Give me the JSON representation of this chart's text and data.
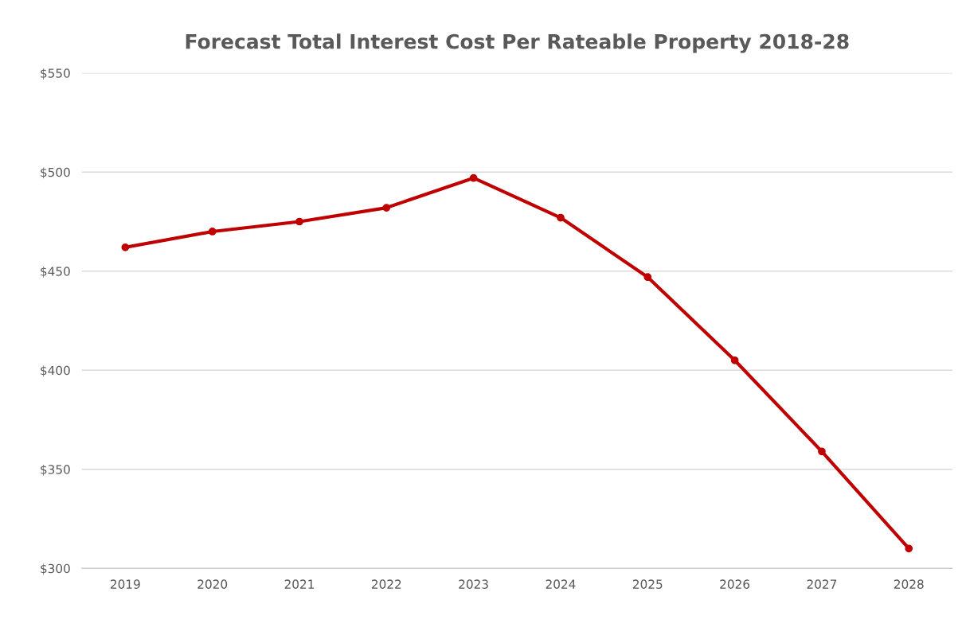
{
  "chart_data": {
    "type": "line",
    "title": "Forecast Total Interest Cost Per Rateable Property 2018-28",
    "categories": [
      "2019",
      "2020",
      "2021",
      "2022",
      "2023",
      "2024",
      "2025",
      "2026",
      "2027",
      "2028"
    ],
    "series": [
      {
        "color": "#c00000",
        "values": [
          462,
          470,
          475,
          482,
          497,
          477,
          447,
          405,
          359,
          310
        ]
      }
    ],
    "ylim": [
      300,
      550
    ],
    "yticks": [
      {
        "value": 300,
        "label": "$300"
      },
      {
        "value": 350,
        "label": "$350"
      },
      {
        "value": 400,
        "label": "$400"
      },
      {
        "value": 450,
        "label": "$450"
      },
      {
        "value": 500,
        "label": "$500"
      },
      {
        "value": 550,
        "label": "$550"
      }
    ],
    "grid": "y",
    "marker": "circle",
    "line_style": "solid"
  }
}
